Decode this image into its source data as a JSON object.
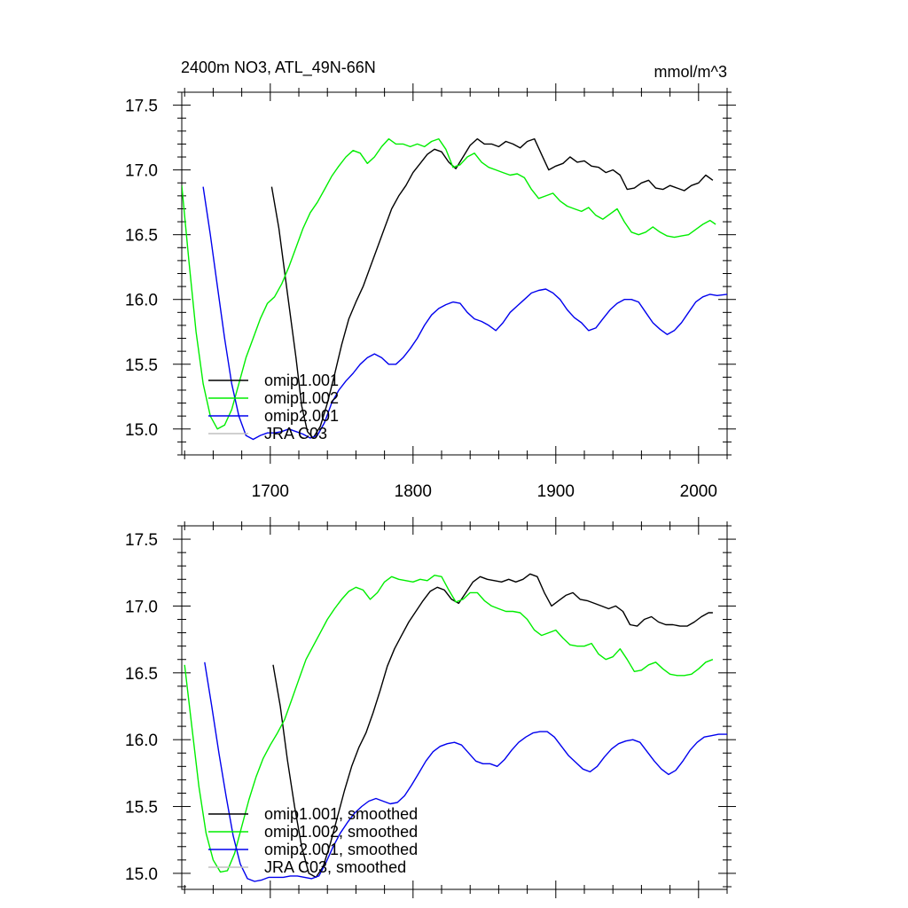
{
  "chart_data": [
    {
      "type": "line",
      "title": "2400m NO3, ATL_49N-66N",
      "units": "mmol/m^3",
      "xlim": [
        1638,
        2020
      ],
      "ylim": [
        14.8,
        17.6
      ],
      "x_ticks": [
        1700,
        1800,
        1900,
        2000
      ],
      "x_tick_labels": [
        "1700",
        "1800",
        "1900",
        "2000"
      ],
      "y_ticks": [
        15.0,
        15.5,
        16.0,
        16.5,
        17.0,
        17.5
      ],
      "y_tick_labels": [
        "15.0",
        "15.5",
        "16.0",
        "16.5",
        "17.0",
        "17.5"
      ],
      "legend_position": "lower-left",
      "series": [
        {
          "name": "omip1.001",
          "color": "#000000",
          "x": [
            1701,
            1706,
            1712,
            1718,
            1722,
            1726,
            1730,
            1735,
            1740,
            1745,
            1750,
            1755,
            1760,
            1765,
            1770,
            1775,
            1780,
            1785,
            1790,
            1795,
            1800,
            1805,
            1810,
            1815,
            1820,
            1825,
            1830,
            1835,
            1840,
            1845,
            1850,
            1855,
            1860,
            1865,
            1870,
            1875,
            1880,
            1885,
            1890,
            1895,
            1900,
            1905,
            1910,
            1915,
            1920,
            1925,
            1930,
            1935,
            1940,
            1945,
            1950,
            1955,
            1960,
            1965,
            1970,
            1975,
            1980,
            1985,
            1990,
            1995,
            2000,
            2005,
            2010
          ],
          "y": [
            16.87,
            16.55,
            16.05,
            15.55,
            15.18,
            14.98,
            14.93,
            15.02,
            15.2,
            15.42,
            15.65,
            15.85,
            15.98,
            16.1,
            16.25,
            16.4,
            16.55,
            16.7,
            16.8,
            16.88,
            16.98,
            17.05,
            17.12,
            17.16,
            17.14,
            17.06,
            17.01,
            17.1,
            17.19,
            17.24,
            17.2,
            17.2,
            17.18,
            17.22,
            17.2,
            17.17,
            17.22,
            17.24,
            17.12,
            17.0,
            17.03,
            17.05,
            17.1,
            17.06,
            17.07,
            17.03,
            17.02,
            16.98,
            17.0,
            16.96,
            16.85,
            16.86,
            16.9,
            16.92,
            16.86,
            16.85,
            16.88,
            16.86,
            16.84,
            16.88,
            16.9,
            16.96,
            16.92
          ]
        },
        {
          "name": "omip1.002",
          "color": "#00ee00",
          "x": [
            1638,
            1643,
            1648,
            1653,
            1658,
            1663,
            1668,
            1673,
            1678,
            1683,
            1688,
            1693,
            1698,
            1703,
            1708,
            1713,
            1718,
            1723,
            1728,
            1733,
            1738,
            1743,
            1748,
            1753,
            1758,
            1763,
            1768,
            1773,
            1778,
            1783,
            1788,
            1793,
            1798,
            1803,
            1808,
            1813,
            1818,
            1823,
            1828,
            1833,
            1838,
            1843,
            1848,
            1853,
            1858,
            1863,
            1868,
            1873,
            1878,
            1883,
            1888,
            1893,
            1898,
            1903,
            1908,
            1913,
            1918,
            1923,
            1928,
            1933,
            1938,
            1943,
            1948,
            1953,
            1958,
            1963,
            1968,
            1973,
            1978,
            1983,
            1988,
            1993,
            1998,
            2003,
            2008,
            2012
          ],
          "y": [
            16.88,
            16.3,
            15.75,
            15.35,
            15.1,
            15.0,
            15.03,
            15.15,
            15.35,
            15.55,
            15.7,
            15.85,
            15.97,
            16.02,
            16.12,
            16.25,
            16.4,
            16.55,
            16.67,
            16.75,
            16.85,
            16.95,
            17.03,
            17.1,
            17.15,
            17.13,
            17.05,
            17.1,
            17.18,
            17.24,
            17.2,
            17.2,
            17.18,
            17.2,
            17.18,
            17.22,
            17.24,
            17.16,
            17.02,
            17.04,
            17.1,
            17.13,
            17.06,
            17.02,
            17.0,
            16.98,
            16.96,
            16.97,
            16.94,
            16.85,
            16.78,
            16.8,
            16.82,
            16.76,
            16.72,
            16.7,
            16.68,
            16.71,
            16.65,
            16.62,
            16.66,
            16.7,
            16.6,
            16.52,
            16.5,
            16.52,
            16.56,
            16.52,
            16.49,
            16.48,
            16.49,
            16.5,
            16.54,
            16.58,
            16.61,
            16.58
          ]
        },
        {
          "name": "omip2.001",
          "color": "#0000ee",
          "x": [
            1653,
            1658,
            1663,
            1668,
            1673,
            1678,
            1683,
            1688,
            1693,
            1698,
            1703,
            1708,
            1713,
            1718,
            1723,
            1728,
            1733,
            1738,
            1743,
            1748,
            1753,
            1758,
            1763,
            1768,
            1773,
            1778,
            1783,
            1788,
            1793,
            1798,
            1803,
            1808,
            1813,
            1818,
            1823,
            1828,
            1833,
            1838,
            1843,
            1848,
            1853,
            1858,
            1863,
            1868,
            1873,
            1878,
            1883,
            1888,
            1893,
            1898,
            1903,
            1908,
            1913,
            1918,
            1923,
            1928,
            1933,
            1938,
            1943,
            1948,
            1953,
            1958,
            1963,
            1968,
            1973,
            1978,
            1983,
            1988,
            1993,
            1998,
            2003,
            2008,
            2013,
            2020
          ],
          "y": [
            16.87,
            16.5,
            16.1,
            15.7,
            15.35,
            15.1,
            14.95,
            14.92,
            14.95,
            14.97,
            14.97,
            14.98,
            15.0,
            14.98,
            14.96,
            14.93,
            14.95,
            15.05,
            15.2,
            15.3,
            15.37,
            15.43,
            15.5,
            15.55,
            15.58,
            15.55,
            15.5,
            15.5,
            15.55,
            15.62,
            15.7,
            15.8,
            15.88,
            15.93,
            15.96,
            15.98,
            15.97,
            15.9,
            15.85,
            15.83,
            15.8,
            15.76,
            15.82,
            15.9,
            15.95,
            16.0,
            16.05,
            16.07,
            16.08,
            16.05,
            16.0,
            15.92,
            15.86,
            15.82,
            15.76,
            15.78,
            15.85,
            15.92,
            15.97,
            16.0,
            16.0,
            15.98,
            15.9,
            15.82,
            15.77,
            15.73,
            15.76,
            15.82,
            15.9,
            15.98,
            16.02,
            16.04,
            16.03,
            16.04
          ]
        },
        {
          "name": "JRA C03",
          "color": "#c0c0c0",
          "x": [],
          "y": []
        }
      ]
    },
    {
      "type": "line",
      "xlim": [
        1638,
        2020
      ],
      "ylim": [
        14.88,
        17.6
      ],
      "x_ticks": [
        1700,
        1800,
        1900,
        2000
      ],
      "y_ticks": [
        15.0,
        15.5,
        16.0,
        16.5,
        17.0,
        17.5
      ],
      "y_tick_labels": [
        "15.0",
        "15.5",
        "16.0",
        "16.5",
        "17.0",
        "17.5"
      ],
      "legend_position": "lower-left",
      "series": [
        {
          "name": "omip1.001, smoothed",
          "color": "#000000",
          "x": [
            1702,
            1707,
            1712,
            1717,
            1722,
            1727,
            1732,
            1737,
            1742,
            1747,
            1752,
            1757,
            1762,
            1767,
            1772,
            1777,
            1782,
            1787,
            1792,
            1797,
            1802,
            1807,
            1812,
            1817,
            1822,
            1827,
            1832,
            1837,
            1842,
            1847,
            1852,
            1857,
            1862,
            1867,
            1872,
            1877,
            1882,
            1887,
            1892,
            1897,
            1902,
            1907,
            1912,
            1917,
            1922,
            1927,
            1932,
            1937,
            1942,
            1947,
            1952,
            1957,
            1962,
            1967,
            1972,
            1977,
            1982,
            1987,
            1992,
            1997,
            2002,
            2007,
            2010
          ],
          "y": [
            16.56,
            16.25,
            15.85,
            15.5,
            15.2,
            15.0,
            14.97,
            15.05,
            15.22,
            15.42,
            15.62,
            15.8,
            15.94,
            16.05,
            16.2,
            16.37,
            16.55,
            16.68,
            16.78,
            16.88,
            16.96,
            17.04,
            17.11,
            17.14,
            17.12,
            17.05,
            17.02,
            17.1,
            17.18,
            17.22,
            17.2,
            17.19,
            17.18,
            17.2,
            17.18,
            17.2,
            17.24,
            17.22,
            17.1,
            17.0,
            17.04,
            17.08,
            17.1,
            17.05,
            17.04,
            17.02,
            17.0,
            16.98,
            17.0,
            16.96,
            16.86,
            16.85,
            16.9,
            16.92,
            16.88,
            16.86,
            16.86,
            16.85,
            16.85,
            16.88,
            16.92,
            16.95,
            16.95
          ]
        },
        {
          "name": "omip1.002, smoothed",
          "color": "#00ee00",
          "x": [
            1640,
            1645,
            1650,
            1655,
            1660,
            1665,
            1670,
            1675,
            1680,
            1685,
            1690,
            1695,
            1700,
            1705,
            1710,
            1715,
            1720,
            1725,
            1730,
            1735,
            1740,
            1745,
            1750,
            1755,
            1760,
            1765,
            1770,
            1775,
            1780,
            1785,
            1790,
            1795,
            1800,
            1805,
            1810,
            1815,
            1820,
            1825,
            1830,
            1835,
            1840,
            1845,
            1850,
            1855,
            1860,
            1865,
            1870,
            1875,
            1880,
            1885,
            1890,
            1895,
            1900,
            1905,
            1910,
            1915,
            1920,
            1925,
            1930,
            1935,
            1940,
            1945,
            1950,
            1955,
            1960,
            1965,
            1970,
            1975,
            1980,
            1985,
            1990,
            1995,
            2000,
            2005,
            2010
          ],
          "y": [
            16.56,
            16.1,
            15.65,
            15.3,
            15.1,
            15.01,
            15.02,
            15.15,
            15.35,
            15.55,
            15.72,
            15.86,
            15.96,
            16.05,
            16.15,
            16.3,
            16.45,
            16.6,
            16.7,
            16.8,
            16.9,
            16.98,
            17.05,
            17.11,
            17.14,
            17.12,
            17.05,
            17.1,
            17.18,
            17.22,
            17.2,
            17.19,
            17.18,
            17.2,
            17.19,
            17.23,
            17.22,
            17.12,
            17.03,
            17.05,
            17.1,
            17.1,
            17.04,
            17.0,
            16.98,
            16.96,
            16.96,
            16.95,
            16.9,
            16.82,
            16.78,
            16.8,
            16.82,
            16.76,
            16.71,
            16.7,
            16.7,
            16.72,
            16.64,
            16.6,
            16.62,
            16.68,
            16.6,
            16.51,
            16.52,
            16.56,
            16.58,
            16.53,
            16.49,
            16.48,
            16.48,
            16.49,
            16.53,
            16.58,
            16.6
          ]
        },
        {
          "name": "omip2.001, smoothed",
          "color": "#0000ee",
          "x": [
            1654,
            1659,
            1664,
            1669,
            1674,
            1679,
            1684,
            1689,
            1694,
            1699,
            1704,
            1709,
            1714,
            1719,
            1724,
            1729,
            1734,
            1739,
            1744,
            1749,
            1754,
            1759,
            1764,
            1769,
            1774,
            1779,
            1784,
            1789,
            1794,
            1799,
            1804,
            1809,
            1814,
            1819,
            1824,
            1829,
            1834,
            1839,
            1844,
            1849,
            1854,
            1859,
            1864,
            1869,
            1874,
            1879,
            1884,
            1889,
            1894,
            1899,
            1904,
            1909,
            1914,
            1919,
            1924,
            1929,
            1934,
            1939,
            1944,
            1949,
            1954,
            1959,
            1964,
            1969,
            1974,
            1979,
            1984,
            1989,
            1994,
            1999,
            2004,
            2009,
            2014,
            2020
          ],
          "y": [
            16.58,
            16.25,
            15.9,
            15.58,
            15.28,
            15.07,
            14.96,
            14.94,
            14.95,
            14.97,
            14.97,
            14.97,
            14.98,
            14.98,
            14.97,
            14.96,
            14.98,
            15.08,
            15.2,
            15.3,
            15.38,
            15.45,
            15.5,
            15.54,
            15.56,
            15.54,
            15.52,
            15.53,
            15.58,
            15.66,
            15.75,
            15.84,
            15.91,
            15.95,
            15.97,
            15.98,
            15.96,
            15.9,
            15.84,
            15.82,
            15.82,
            15.8,
            15.85,
            15.92,
            15.98,
            16.02,
            16.05,
            16.06,
            16.06,
            16.02,
            15.95,
            15.88,
            15.83,
            15.78,
            15.76,
            15.8,
            15.87,
            15.93,
            15.97,
            15.99,
            16.0,
            15.98,
            15.91,
            15.84,
            15.78,
            15.74,
            15.77,
            15.84,
            15.92,
            15.98,
            16.02,
            16.03,
            16.04,
            16.04
          ]
        },
        {
          "name": "JRA C03, smoothed",
          "color": "#c0c0c0",
          "x": [],
          "y": []
        }
      ]
    }
  ]
}
